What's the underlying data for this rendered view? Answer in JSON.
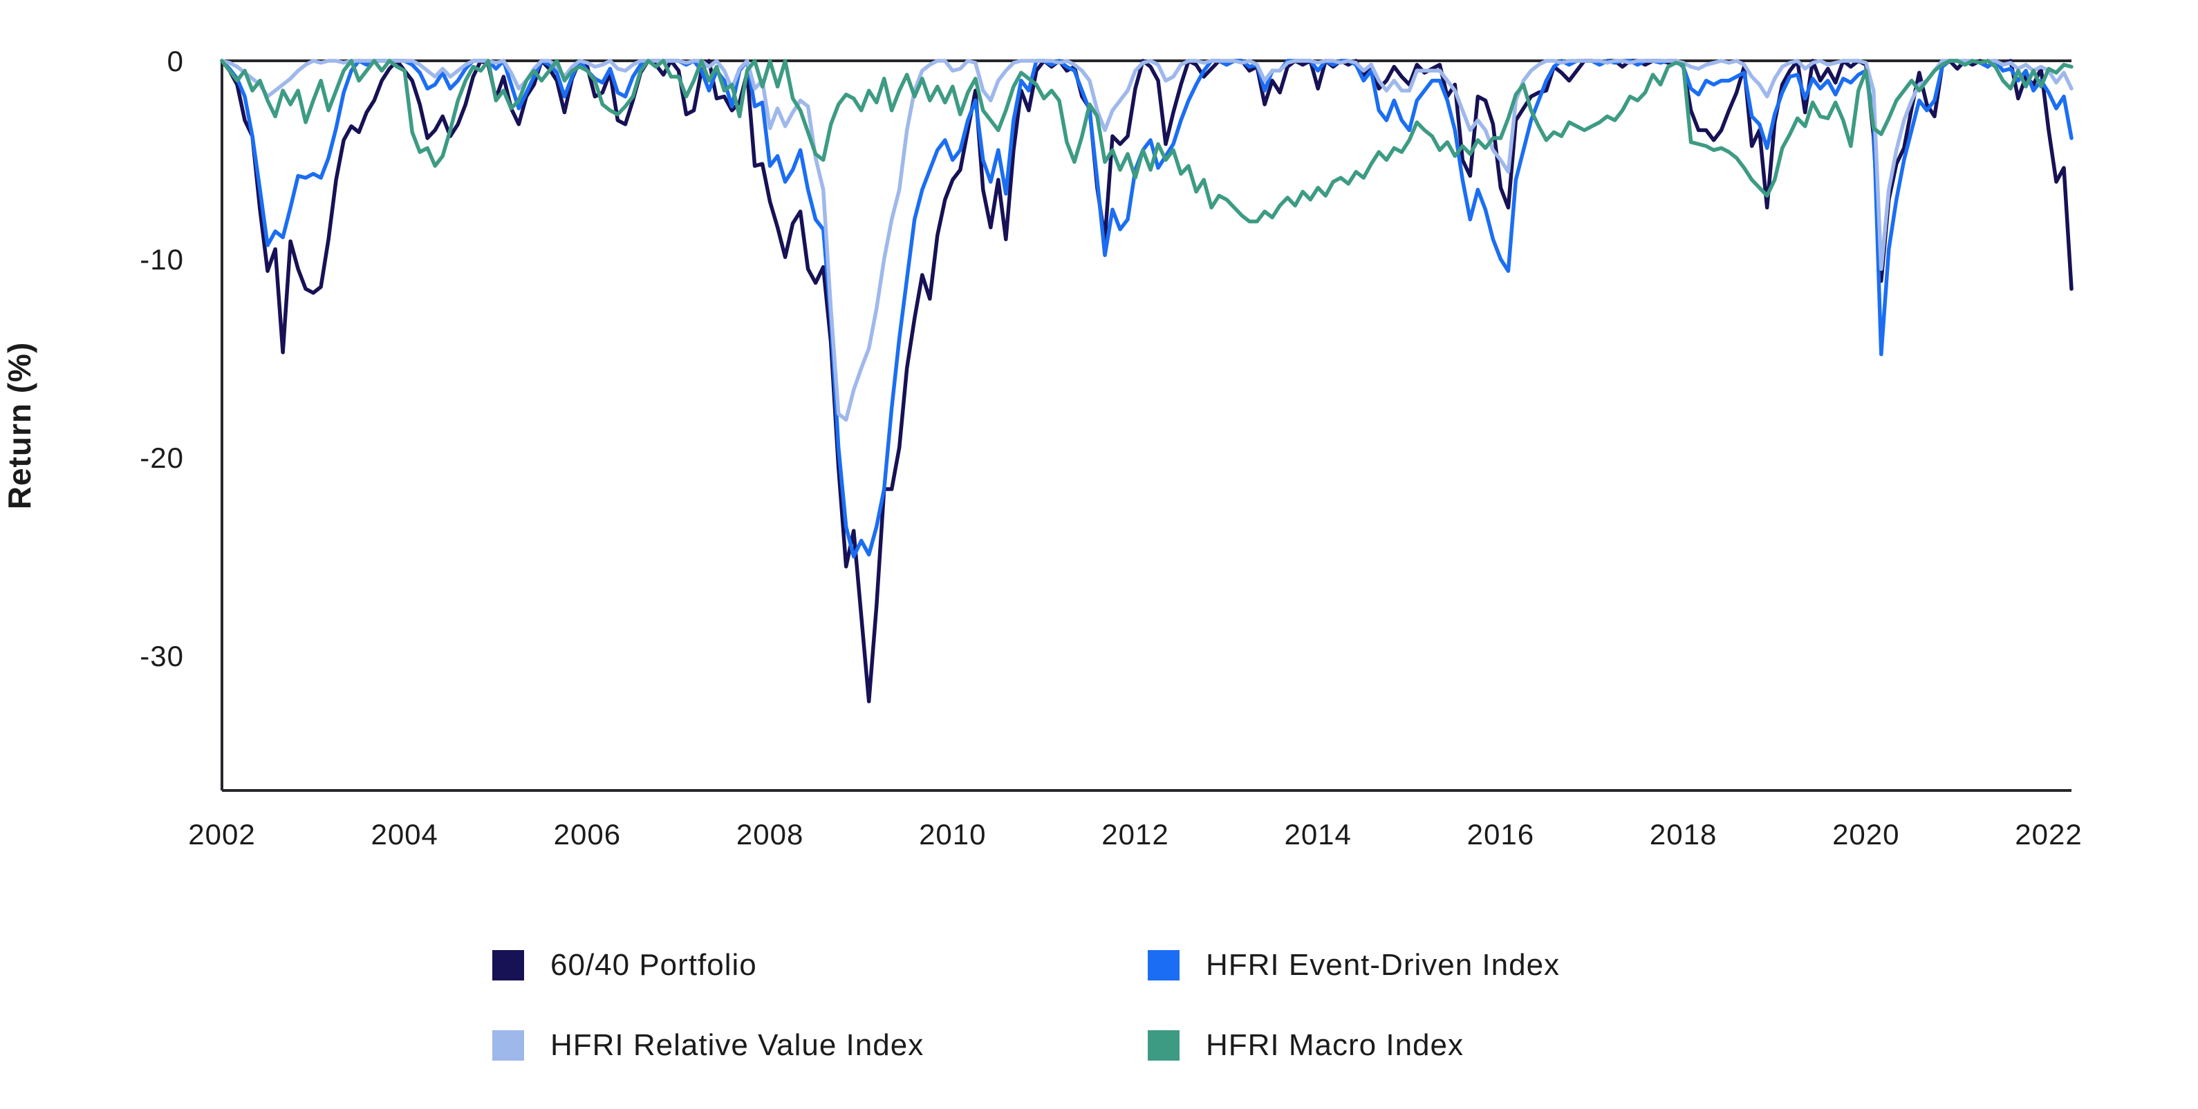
{
  "chart_data": {
    "type": "line",
    "title": "",
    "xlabel": "",
    "ylabel": "Return (%)",
    "frequency": "monthly",
    "x_start": "2002-01",
    "x_end": "2022-04",
    "ylim": [
      -36.6,
      0
    ],
    "grid": false,
    "legend_position": "bottom",
    "ytick_values": [
      0,
      -10,
      -20,
      -30
    ],
    "ytick_labels": [
      "0",
      "-10",
      "-20",
      "-30"
    ],
    "xtick_years": [
      2002,
      2004,
      2006,
      2008,
      2010,
      2012,
      2014,
      2016,
      2018,
      2020,
      2022
    ],
    "xtick_labels": [
      "2002",
      "2004",
      "2006",
      "2008",
      "2010",
      "2012",
      "2014",
      "2016",
      "2018",
      "2020",
      "2022"
    ],
    "axis_color": "#26262c",
    "text_color": "#1b1b1b",
    "series": [
      {
        "name": "60/40 Portfolio",
        "color": "#171155",
        "values": [
          0,
          -0.5,
          -1.2,
          -3.0,
          -3.8,
          -7.5,
          -10.6,
          -9.5,
          -14.7,
          -9.1,
          -10.5,
          -11.5,
          -11.7,
          -11.4,
          -9.0,
          -6.0,
          -4.0,
          -3.3,
          -3.6,
          -2.6,
          -2.0,
          -1.0,
          -0.4,
          0,
          -0.5,
          -1.0,
          -2.2,
          -3.9,
          -3.5,
          -2.8,
          -3.8,
          -3.2,
          -2.2,
          -0.8,
          0,
          -0.2,
          -1.9,
          -0.8,
          -2.4,
          -3.2,
          -1.8,
          -1.2,
          0,
          -0.4,
          -1.0,
          -2.6,
          -0.9,
          0,
          -0.3,
          -1.8,
          -1.6,
          -0.6,
          -3.0,
          -3.2,
          -2.0,
          -0.6,
          0,
          -0.2,
          -0.7,
          0,
          -0.5,
          -2.7,
          -2.5,
          -0.5,
          0,
          -1.9,
          -1.8,
          -2.5,
          -2.1,
          -0.6,
          -5.3,
          -5.2,
          -7.1,
          -8.4,
          -9.9,
          -8.2,
          -7.6,
          -10.5,
          -11.2,
          -10.4,
          -14.2,
          -20.5,
          -25.5,
          -23.7,
          -28.0,
          -32.3,
          -27.5,
          -21.6,
          -21.6,
          -19.5,
          -15.5,
          -13.0,
          -10.8,
          -12.0,
          -8.8,
          -7.0,
          -6.0,
          -5.5,
          -3.5,
          -1.5,
          -6.5,
          -8.4,
          -6.0,
          -9.0,
          -4.5,
          -1.5,
          -2.5,
          -0.5,
          0,
          -0.3,
          0,
          -0.5,
          -0.3,
          -1.8,
          -2.4,
          -6.4,
          -9.0,
          -3.8,
          -4.2,
          -3.8,
          -1.4,
          0,
          -0.3,
          -1.0,
          -4.2,
          -2.6,
          -1.2,
          0,
          -0.2,
          -0.8,
          -0.4,
          0,
          -0.2,
          0,
          0,
          -0.5,
          -0.3,
          -2.2,
          -1.0,
          -1.6,
          -0.3,
          0,
          -0.2,
          0,
          -1.4,
          0,
          -0.3,
          0,
          -0.2,
          0,
          -0.8,
          -0.2,
          -1.4,
          -1.0,
          -0.3,
          -0.8,
          -1.2,
          -0.2,
          -0.6,
          -0.4,
          -0.2,
          -1.8,
          -1.2,
          -5.0,
          -5.8,
          -1.8,
          -2.0,
          -3.2,
          -6.4,
          -7.4,
          -3.0,
          -2.4,
          -1.8,
          -1.6,
          -1.5,
          -0.3,
          -0.6,
          -1.0,
          -0.5,
          0,
          0,
          -0.2,
          0,
          0,
          -0.3,
          0,
          0,
          -0.2,
          0,
          0,
          -0.1,
          0,
          -0.3,
          -2.5,
          -3.5,
          -3.5,
          -4.0,
          -3.5,
          -2.5,
          -1.6,
          -0.3,
          -4.3,
          -3.5,
          -7.4,
          -3.1,
          -1.2,
          -0.5,
          0,
          -2.6,
          0,
          -1.0,
          -0.4,
          -1.1,
          0,
          -0.3,
          0,
          -0.2,
          -3.8,
          -11.1,
          -7.0,
          -5.2,
          -4.4,
          -2.4,
          -0.6,
          -2.2,
          -2.8,
          -0.3,
          0,
          -0.4,
          0,
          -0.2,
          0,
          -0.3,
          0,
          -0.2,
          0,
          -1.9,
          -0.8,
          -1.2,
          -0.4,
          -3.5,
          -6.1,
          -5.4,
          -11.5
        ]
      },
      {
        "name": "HFRI Event-Driven Index",
        "color": "#1b6ef3",
        "values": [
          0,
          -0.4,
          -0.9,
          -1.8,
          -3.8,
          -6.5,
          -9.3,
          -8.6,
          -8.9,
          -7.4,
          -5.8,
          -5.9,
          -5.7,
          -5.9,
          -4.9,
          -3.4,
          -1.6,
          -0.5,
          0,
          -0.2,
          0,
          0,
          0,
          0,
          0,
          -0.2,
          -0.6,
          -1.4,
          -1.2,
          -0.6,
          -1.4,
          -1.0,
          -0.4,
          0,
          0,
          0,
          -0.4,
          0,
          -1.2,
          -2.4,
          -1.6,
          -0.8,
          0,
          -0.2,
          -0.6,
          -1.8,
          -0.8,
          0,
          -0.5,
          -0.9,
          -1.1,
          -0.4,
          -1.6,
          -1.8,
          -0.8,
          -0.2,
          0,
          0,
          0,
          0,
          0,
          -0.2,
          0,
          -0.5,
          -1.5,
          -0.5,
          -1.0,
          -2.3,
          -0.5,
          0,
          -2.3,
          -2.1,
          -5.3,
          -4.8,
          -6.1,
          -5.5,
          -4.5,
          -6.5,
          -8.0,
          -8.5,
          -13.0,
          -19.5,
          -23.5,
          -25.0,
          -24.2,
          -24.9,
          -23.5,
          -21.6,
          -17.5,
          -14.0,
          -11.0,
          -8.0,
          -6.5,
          -5.5,
          -4.5,
          -4.0,
          -5.0,
          -4.5,
          -3.0,
          -2.0,
          -5.0,
          -6.1,
          -4.5,
          -6.7,
          -3.0,
          -1.0,
          -1.5,
          0,
          0,
          -0.2,
          0,
          -0.3,
          -0.5,
          -1.5,
          -2.5,
          -6.0,
          -9.8,
          -7.5,
          -8.5,
          -8.0,
          -5.5,
          -4.5,
          -4.0,
          -5.4,
          -4.8,
          -4.2,
          -3.0,
          -2.0,
          -1.2,
          -0.5,
          0,
          0,
          -0.2,
          0,
          0,
          -0.3,
          -0.2,
          -1.5,
          -0.5,
          -0.5,
          0,
          0,
          0,
          0,
          -0.5,
          0,
          -0.2,
          0,
          0,
          -0.2,
          -1.0,
          -0.5,
          -2.5,
          -3.0,
          -2.0,
          -3.0,
          -3.5,
          -2.0,
          -1.5,
          -1.0,
          -1.0,
          -2.0,
          -3.5,
          -6.0,
          -8.0,
          -6.5,
          -7.5,
          -9.0,
          -10.0,
          -10.6,
          -6.0,
          -4.5,
          -3.0,
          -2.0,
          -1.0,
          -0.3,
          0,
          -0.2,
          0,
          0,
          0,
          -0.2,
          0,
          -0.1,
          0,
          0,
          -0.2,
          0,
          0,
          -0.1,
          0,
          0,
          -0.3,
          -1.4,
          -1.7,
          -1.0,
          -1.2,
          -1.0,
          -1.0,
          -0.8,
          -0.6,
          -2.8,
          -3.2,
          -4.4,
          -2.7,
          -1.6,
          -0.8,
          -0.7,
          -1.9,
          -0.9,
          -1.4,
          -1.0,
          -1.7,
          -0.9,
          -1.1,
          -0.7,
          -0.5,
          -3.0,
          -14.8,
          -9.5,
          -7.0,
          -5.0,
          -3.5,
          -2.0,
          -2.5,
          -2.0,
          -0.3,
          0,
          0,
          -0.2,
          0,
          -0.1,
          -0.3,
          0,
          -0.5,
          -0.4,
          -1.0,
          -0.5,
          -1.5,
          -1.0,
          -1.6,
          -2.4,
          -1.8,
          -3.9
        ]
      },
      {
        "name": "HFRI Relative Value Index",
        "color": "#9fb8ec",
        "values": [
          0,
          -0.1,
          -0.3,
          -0.6,
          -0.9,
          -1.2,
          -1.8,
          -1.5,
          -1.2,
          -0.9,
          -0.5,
          -0.2,
          0,
          -0.1,
          0,
          0,
          -0.1,
          0,
          0,
          0,
          0,
          0,
          0,
          0,
          0,
          0,
          -0.2,
          -0.5,
          -0.8,
          -0.4,
          -0.8,
          -0.5,
          -0.2,
          0,
          0,
          0,
          -0.1,
          0,
          -0.6,
          -1.4,
          -1.0,
          -0.4,
          0,
          0,
          -0.3,
          -0.8,
          -0.3,
          0,
          -0.1,
          -0.3,
          -0.2,
          0,
          -0.4,
          -0.5,
          -0.2,
          0,
          0,
          0,
          0,
          0,
          0,
          -0.1,
          0,
          0,
          -0.3,
          0,
          -0.5,
          -1.4,
          -0.4,
          0,
          -1.4,
          -1.0,
          -3.4,
          -2.4,
          -3.3,
          -2.6,
          -2.0,
          -2.3,
          -4.9,
          -6.5,
          -12.5,
          -17.8,
          -18.1,
          -16.6,
          -15.5,
          -14.5,
          -12.5,
          -10.0,
          -8.0,
          -6.5,
          -3.5,
          -1.5,
          -0.5,
          -0.2,
          0,
          0,
          -0.5,
          -0.4,
          0,
          -0.1,
          -1.5,
          -2.0,
          -1.0,
          -0.5,
          -0.1,
          0,
          0,
          0,
          0,
          0,
          -0.1,
          0,
          -0.2,
          -0.5,
          -1.0,
          -2.5,
          -3.5,
          -2.5,
          -2.0,
          -1.5,
          -0.5,
          -0.1,
          0,
          -0.2,
          -1.0,
          -0.8,
          -0.2,
          0,
          0,
          -0.1,
          0,
          0,
          0,
          0,
          -0.1,
          0,
          -0.2,
          -1.0,
          -0.5,
          -0.5,
          -0.1,
          0,
          0,
          0,
          -0.1,
          0,
          0,
          -0.1,
          0,
          -0.1,
          -0.5,
          -0.2,
          -1.0,
          -1.5,
          -1.0,
          -1.5,
          -1.5,
          -0.5,
          -0.5,
          -0.5,
          -0.5,
          -1.0,
          -1.5,
          -2.5,
          -3.5,
          -3.0,
          -3.5,
          -4.5,
          -5.0,
          -5.6,
          -2.0,
          -1.0,
          -0.5,
          -0.2,
          0,
          0,
          -0.1,
          0,
          0,
          0,
          0,
          0,
          -0.1,
          0,
          0,
          -0.1,
          0,
          0,
          0,
          0,
          0,
          0,
          -0.1,
          -0.3,
          -0.4,
          -0.2,
          -0.1,
          0,
          -0.1,
          0,
          -0.2,
          -0.8,
          -1.2,
          -1.8,
          -0.9,
          -0.3,
          -0.1,
          0,
          -0.4,
          -0.1,
          0,
          -0.2,
          -0.1,
          0,
          0,
          0,
          -0.1,
          -1.5,
          -10.5,
          -6.5,
          -4.5,
          -3.0,
          -2.0,
          -1.2,
          -1.0,
          -0.5,
          0,
          0,
          0,
          0,
          0,
          -0.1,
          0,
          0,
          -0.2,
          -0.1,
          -0.4,
          -0.2,
          -0.5,
          -0.3,
          -0.5,
          -1.1,
          -0.6,
          -1.4
        ]
      },
      {
        "name": "HFRI Macro Index",
        "color": "#3d9b83",
        "values": [
          0,
          -0.5,
          -1.0,
          -0.5,
          -1.5,
          -1.0,
          -2.0,
          -2.8,
          -1.5,
          -2.2,
          -1.5,
          -3.1,
          -2.0,
          -1.0,
          -2.5,
          -1.5,
          -0.5,
          0,
          -1.0,
          -0.5,
          0,
          -0.5,
          0,
          -0.3,
          -0.5,
          -3.6,
          -4.6,
          -4.4,
          -5.3,
          -4.8,
          -3.5,
          -2.0,
          -1.0,
          -0.3,
          -0.5,
          0,
          -2.0,
          -1.5,
          -2.4,
          -2.0,
          -1.0,
          -0.5,
          -1.0,
          -0.5,
          0,
          -1.0,
          -0.5,
          -0.3,
          -0.5,
          -1.0,
          -2.2,
          -2.5,
          -2.7,
          -2.3,
          -1.8,
          -0.5,
          0,
          -0.3,
          0,
          -0.8,
          -0.8,
          -1.8,
          -1.0,
          0,
          -1.0,
          -0.3,
          -1.5,
          -1.2,
          -2.8,
          -0.5,
          0,
          -1.3,
          0,
          -1.3,
          0,
          -1.9,
          -2.5,
          -3.6,
          -4.7,
          -5.0,
          -3.2,
          -2.2,
          -1.7,
          -1.9,
          -2.5,
          -1.5,
          -2.1,
          -0.9,
          -2.5,
          -1.5,
          -0.7,
          -1.8,
          -0.9,
          -2.0,
          -1.3,
          -2.1,
          -1.3,
          -2.7,
          -1.6,
          -0.9,
          -2.5,
          -3.0,
          -3.5,
          -2.5,
          -1.3,
          -0.6,
          -0.9,
          -1.2,
          -1.9,
          -1.5,
          -2.0,
          -4.1,
          -5.1,
          -3.8,
          -2.2,
          -2.8,
          -5.1,
          -4.5,
          -5.5,
          -4.7,
          -5.9,
          -4.5,
          -5.5,
          -4.2,
          -5.0,
          -4.5,
          -5.7,
          -5.3,
          -6.6,
          -6.0,
          -7.4,
          -6.8,
          -7.0,
          -7.4,
          -7.8,
          -8.1,
          -8.1,
          -7.6,
          -7.9,
          -7.3,
          -6.9,
          -7.3,
          -6.6,
          -7.0,
          -6.4,
          -6.8,
          -6.1,
          -5.9,
          -6.2,
          -5.6,
          -5.9,
          -5.2,
          -4.6,
          -5.0,
          -4.4,
          -4.6,
          -4.0,
          -3.1,
          -3.5,
          -3.8,
          -4.5,
          -4.1,
          -4.8,
          -4.3,
          -4.7,
          -4.0,
          -4.4,
          -3.9,
          -3.9,
          -2.9,
          -1.7,
          -1.2,
          -2.5,
          -3.3,
          -4.0,
          -3.6,
          -3.8,
          -3.1,
          -3.3,
          -3.5,
          -3.3,
          -3.1,
          -2.8,
          -3.0,
          -2.5,
          -1.8,
          -2.0,
          -1.6,
          -0.7,
          -1.2,
          -0.3,
          -0.1,
          -0.2,
          -4.1,
          -4.2,
          -4.3,
          -4.5,
          -4.4,
          -4.6,
          -4.9,
          -5.4,
          -6.0,
          -6.4,
          -6.8,
          -6.0,
          -4.4,
          -3.7,
          -2.9,
          -3.3,
          -2.1,
          -2.8,
          -2.9,
          -2.1,
          -3.0,
          -4.3,
          -1.5,
          -0.5,
          -3.4,
          -3.7,
          -2.9,
          -2.0,
          -1.5,
          -1.0,
          -1.5,
          -1.0,
          -0.5,
          -0.2,
          0,
          0,
          -0.2,
          0,
          -0.1,
          0,
          -0.3,
          -1.0,
          -1.4,
          -0.5,
          -1.3,
          -0.5,
          -1.3,
          -0.4,
          -0.6,
          -0.2,
          -0.3
        ]
      }
    ]
  }
}
